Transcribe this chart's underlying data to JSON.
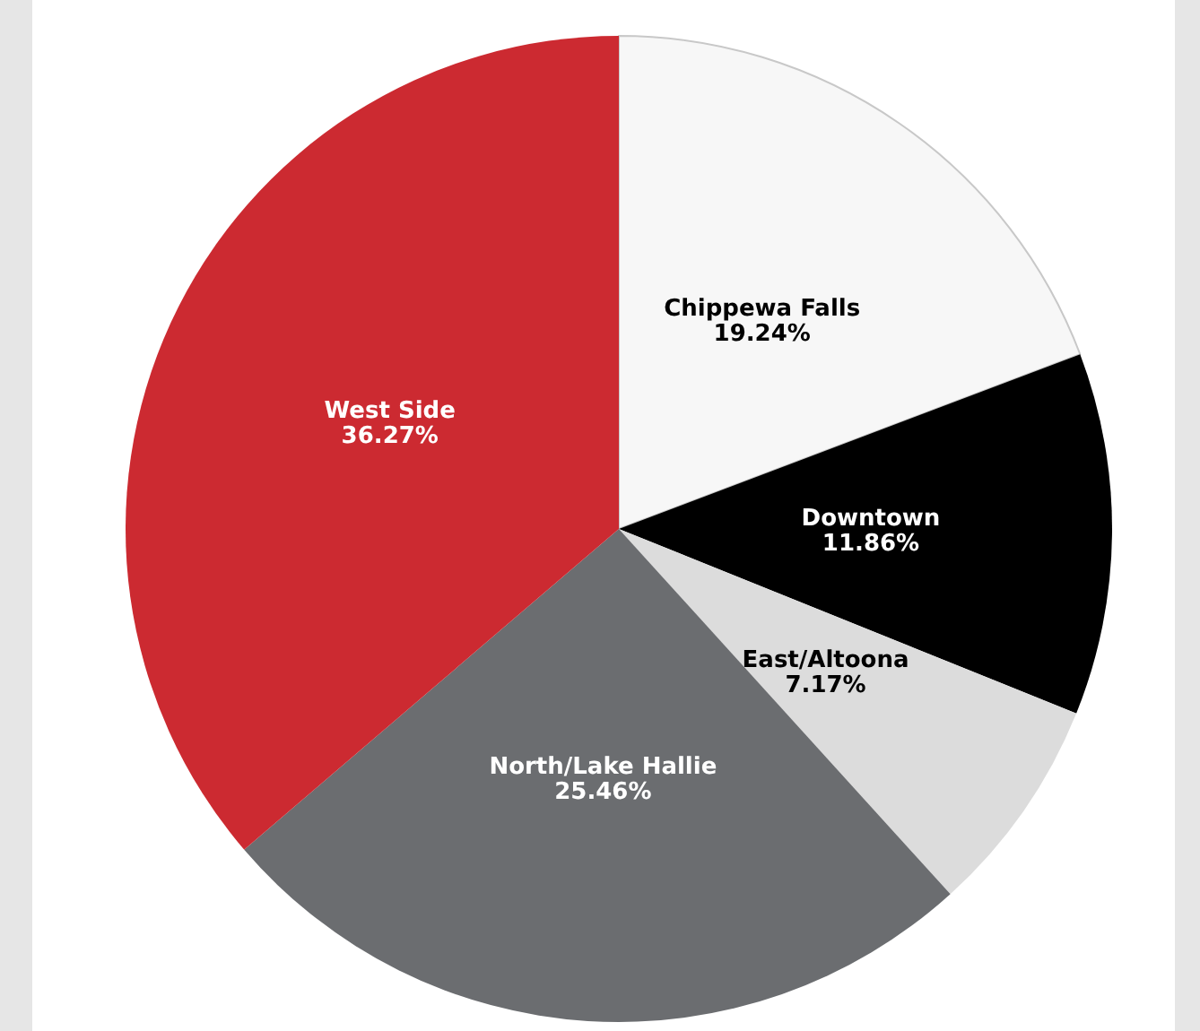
{
  "chart_data": {
    "type": "pie",
    "categories": [
      "Chippewa Falls",
      "Downtown",
      "East/Altoona",
      "North/Lake Hallie",
      "West Side"
    ],
    "values": [
      19.24,
      11.86,
      7.17,
      25.46,
      36.27
    ],
    "colors": [
      "#f7f7f7",
      "#000000",
      "#dcdcdc",
      "#6b6d70",
      "#cc2a31"
    ],
    "value_labels": [
      "19.24%",
      "11.86%",
      "7.17%",
      "25.46%",
      "36.27%"
    ],
    "legend": false
  }
}
